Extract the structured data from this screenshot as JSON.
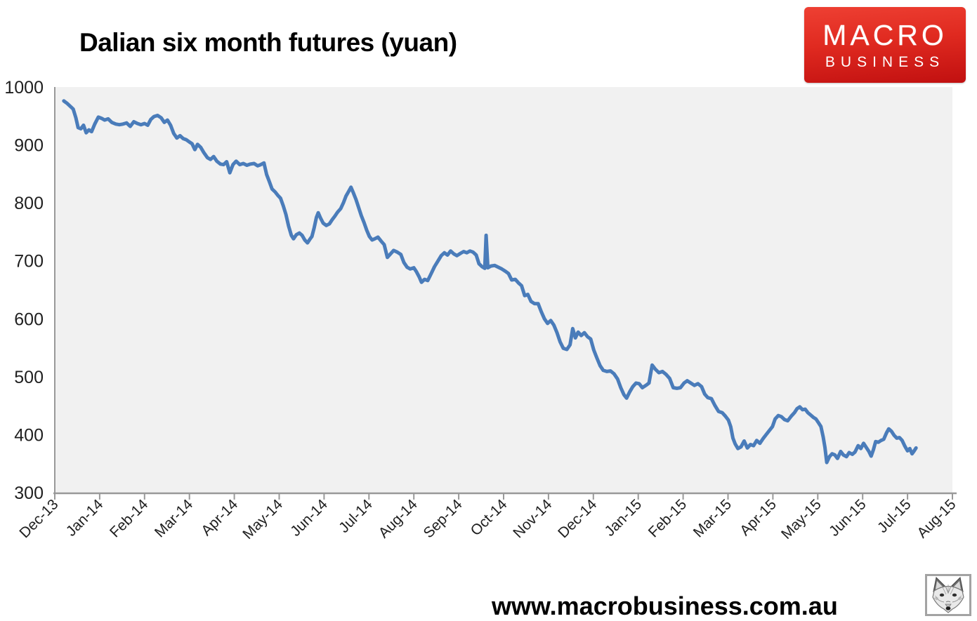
{
  "header": {
    "title": "Dalian six month futures (yuan)"
  },
  "logo": {
    "line1": "MACRO",
    "line2": "BUSINESS",
    "bg_color": "#d6150b",
    "text_color": "#ffffff"
  },
  "footer": {
    "url": "www.macrobusiness.com.au"
  },
  "icons": {
    "fox": "fox-sketch-image"
  },
  "chart_data": {
    "type": "line",
    "title": "Dalian six month futures (yuan)",
    "xlabel": "",
    "ylabel": "",
    "legend": "none",
    "grid": false,
    "plot_bg": "#f1f1f1",
    "line_color": "#4a7cba",
    "axis_color": "#999999",
    "label_color": "#1f1f1f",
    "ylim": [
      300,
      1000
    ],
    "y_ticks": [
      1000,
      900,
      800,
      700,
      600,
      500,
      400,
      300
    ],
    "xlim_months": [
      0,
      20
    ],
    "x_tick_labels": [
      "Dec-13",
      "Jan-14",
      "Feb-14",
      "Mar-14",
      "Apr-14",
      "May-14",
      "Jun-14",
      "Jul-14",
      "Aug-14",
      "Sep-14",
      "Oct-14",
      "Nov-14",
      "Dec-14",
      "Jan-15",
      "Feb-15",
      "Mar-15",
      "Apr-15",
      "May-15",
      "Jun-15",
      "Jul-15",
      "Aug-15"
    ],
    "series": [
      {
        "name": "Dalian six month futures (yuan)",
        "x_unit": "months after Dec-2013",
        "points": [
          [
            0.2,
            976
          ],
          [
            0.27,
            972
          ],
          [
            0.34,
            967
          ],
          [
            0.41,
            962
          ],
          [
            0.47,
            947
          ],
          [
            0.52,
            930
          ],
          [
            0.58,
            928
          ],
          [
            0.64,
            934
          ],
          [
            0.7,
            921
          ],
          [
            0.76,
            926
          ],
          [
            0.82,
            923
          ],
          [
            0.89,
            936
          ],
          [
            0.97,
            948
          ],
          [
            1.04,
            946
          ],
          [
            1.11,
            943
          ],
          [
            1.19,
            945
          ],
          [
            1.27,
            939
          ],
          [
            1.36,
            936
          ],
          [
            1.44,
            935
          ],
          [
            1.52,
            936
          ],
          [
            1.6,
            938
          ],
          [
            1.68,
            932
          ],
          [
            1.76,
            940
          ],
          [
            1.84,
            937
          ],
          [
            1.92,
            935
          ],
          [
            2.0,
            937
          ],
          [
            2.07,
            934
          ],
          [
            2.14,
            944
          ],
          [
            2.21,
            949
          ],
          [
            2.29,
            951
          ],
          [
            2.37,
            947
          ],
          [
            2.44,
            939
          ],
          [
            2.51,
            943
          ],
          [
            2.58,
            934
          ],
          [
            2.65,
            920
          ],
          [
            2.72,
            912
          ],
          [
            2.79,
            916
          ],
          [
            2.86,
            911
          ],
          [
            2.93,
            909
          ],
          [
            3.0,
            905
          ],
          [
            3.06,
            902
          ],
          [
            3.12,
            892
          ],
          [
            3.18,
            901
          ],
          [
            3.25,
            896
          ],
          [
            3.32,
            887
          ],
          [
            3.4,
            878
          ],
          [
            3.47,
            875
          ],
          [
            3.54,
            880
          ],
          [
            3.61,
            872
          ],
          [
            3.69,
            867
          ],
          [
            3.76,
            866
          ],
          [
            3.83,
            871
          ],
          [
            3.9,
            852
          ],
          [
            3.97,
            866
          ],
          [
            4.04,
            872
          ],
          [
            4.12,
            866
          ],
          [
            4.2,
            868
          ],
          [
            4.28,
            865
          ],
          [
            4.36,
            867
          ],
          [
            4.44,
            868
          ],
          [
            4.52,
            864
          ],
          [
            4.59,
            866
          ],
          [
            4.66,
            869
          ],
          [
            4.72,
            849
          ],
          [
            4.78,
            837
          ],
          [
            4.84,
            824
          ],
          [
            4.91,
            819
          ],
          [
            4.97,
            813
          ],
          [
            5.03,
            808
          ],
          [
            5.09,
            795
          ],
          [
            5.15,
            780
          ],
          [
            5.21,
            760
          ],
          [
            5.27,
            744
          ],
          [
            5.32,
            738
          ],
          [
            5.38,
            745
          ],
          [
            5.45,
            748
          ],
          [
            5.51,
            744
          ],
          [
            5.57,
            736
          ],
          [
            5.63,
            731
          ],
          [
            5.68,
            737
          ],
          [
            5.73,
            742
          ],
          [
            5.78,
            757
          ],
          [
            5.83,
            775
          ],
          [
            5.87,
            783
          ],
          [
            5.92,
            774
          ],
          [
            5.98,
            765
          ],
          [
            6.05,
            761
          ],
          [
            6.12,
            764
          ],
          [
            6.18,
            771
          ],
          [
            6.24,
            777
          ],
          [
            6.3,
            784
          ],
          [
            6.37,
            790
          ],
          [
            6.43,
            800
          ],
          [
            6.49,
            812
          ],
          [
            6.55,
            820
          ],
          [
            6.6,
            827
          ],
          [
            6.65,
            818
          ],
          [
            6.71,
            806
          ],
          [
            6.77,
            792
          ],
          [
            6.83,
            778
          ],
          [
            6.89,
            766
          ],
          [
            6.95,
            753
          ],
          [
            7.01,
            742
          ],
          [
            7.07,
            736
          ],
          [
            7.13,
            738
          ],
          [
            7.2,
            741
          ],
          [
            7.27,
            734
          ],
          [
            7.34,
            728
          ],
          [
            7.41,
            706
          ],
          [
            7.48,
            712
          ],
          [
            7.55,
            718
          ],
          [
            7.63,
            715
          ],
          [
            7.71,
            711
          ],
          [
            7.78,
            697
          ],
          [
            7.85,
            689
          ],
          [
            7.92,
            686
          ],
          [
            8.0,
            688
          ],
          [
            8.06,
            681
          ],
          [
            8.12,
            672
          ],
          [
            8.17,
            663
          ],
          [
            8.24,
            668
          ],
          [
            8.31,
            666
          ],
          [
            8.38,
            677
          ],
          [
            8.46,
            690
          ],
          [
            8.54,
            700
          ],
          [
            8.61,
            709
          ],
          [
            8.68,
            714
          ],
          [
            8.75,
            710
          ],
          [
            8.82,
            717
          ],
          [
            8.89,
            712
          ],
          [
            8.96,
            709
          ],
          [
            9.04,
            713
          ],
          [
            9.11,
            716
          ],
          [
            9.18,
            714
          ],
          [
            9.25,
            717
          ],
          [
            9.32,
            715
          ],
          [
            9.39,
            710
          ],
          [
            9.45,
            695
          ],
          [
            9.52,
            690
          ],
          [
            9.58,
            687
          ],
          [
            9.61,
            744
          ],
          [
            9.65,
            688
          ],
          [
            9.72,
            691
          ],
          [
            9.8,
            692
          ],
          [
            9.88,
            689
          ],
          [
            9.96,
            686
          ],
          [
            10.04,
            682
          ],
          [
            10.11,
            678
          ],
          [
            10.18,
            667
          ],
          [
            10.26,
            668
          ],
          [
            10.33,
            662
          ],
          [
            10.4,
            657
          ],
          [
            10.47,
            640
          ],
          [
            10.54,
            642
          ],
          [
            10.61,
            630
          ],
          [
            10.69,
            626
          ],
          [
            10.77,
            626
          ],
          [
            10.84,
            612
          ],
          [
            10.91,
            600
          ],
          [
            10.98,
            592
          ],
          [
            11.05,
            597
          ],
          [
            11.12,
            589
          ],
          [
            11.19,
            576
          ],
          [
            11.26,
            560
          ],
          [
            11.33,
            549
          ],
          [
            11.41,
            547
          ],
          [
            11.48,
            555
          ],
          [
            11.54,
            583
          ],
          [
            11.6,
            567
          ],
          [
            11.66,
            577
          ],
          [
            11.73,
            571
          ],
          [
            11.8,
            576
          ],
          [
            11.87,
            569
          ],
          [
            11.94,
            565
          ],
          [
            12.01,
            546
          ],
          [
            12.08,
            532
          ],
          [
            12.15,
            519
          ],
          [
            12.22,
            511
          ],
          [
            12.3,
            509
          ],
          [
            12.38,
            510
          ],
          [
            12.46,
            505
          ],
          [
            12.54,
            496
          ],
          [
            12.61,
            481
          ],
          [
            12.68,
            469
          ],
          [
            12.74,
            463
          ],
          [
            12.81,
            474
          ],
          [
            12.88,
            483
          ],
          [
            12.95,
            489
          ],
          [
            13.02,
            488
          ],
          [
            13.09,
            481
          ],
          [
            13.17,
            485
          ],
          [
            13.24,
            489
          ],
          [
            13.31,
            520
          ],
          [
            13.38,
            513
          ],
          [
            13.46,
            507
          ],
          [
            13.54,
            509
          ],
          [
            13.62,
            504
          ],
          [
            13.7,
            497
          ],
          [
            13.78,
            481
          ],
          [
            13.86,
            480
          ],
          [
            13.94,
            481
          ],
          [
            14.02,
            489
          ],
          [
            14.09,
            493
          ],
          [
            14.17,
            489
          ],
          [
            14.25,
            485
          ],
          [
            14.33,
            488
          ],
          [
            14.41,
            483
          ],
          [
            14.48,
            470
          ],
          [
            14.55,
            464
          ],
          [
            14.63,
            462
          ],
          [
            14.71,
            450
          ],
          [
            14.79,
            440
          ],
          [
            14.87,
            438
          ],
          [
            14.94,
            432
          ],
          [
            15.01,
            425
          ],
          [
            15.06,
            414
          ],
          [
            15.11,
            394
          ],
          [
            15.16,
            384
          ],
          [
            15.22,
            376
          ],
          [
            15.29,
            379
          ],
          [
            15.36,
            389
          ],
          [
            15.43,
            377
          ],
          [
            15.5,
            383
          ],
          [
            15.57,
            381
          ],
          [
            15.64,
            390
          ],
          [
            15.71,
            385
          ],
          [
            15.78,
            393
          ],
          [
            15.85,
            400
          ],
          [
            15.92,
            407
          ],
          [
            15.99,
            414
          ],
          [
            16.05,
            427
          ],
          [
            16.12,
            433
          ],
          [
            16.19,
            431
          ],
          [
            16.26,
            426
          ],
          [
            16.33,
            424
          ],
          [
            16.41,
            432
          ],
          [
            16.48,
            438
          ],
          [
            16.54,
            445
          ],
          [
            16.6,
            448
          ],
          [
            16.66,
            443
          ],
          [
            16.72,
            444
          ],
          [
            16.78,
            438
          ],
          [
            16.84,
            434
          ],
          [
            16.9,
            430
          ],
          [
            16.96,
            427
          ],
          [
            17.02,
            420
          ],
          [
            17.07,
            414
          ],
          [
            17.12,
            396
          ],
          [
            17.16,
            378
          ],
          [
            17.2,
            352
          ],
          [
            17.26,
            362
          ],
          [
            17.32,
            367
          ],
          [
            17.38,
            365
          ],
          [
            17.44,
            359
          ],
          [
            17.51,
            371
          ],
          [
            17.57,
            365
          ],
          [
            17.64,
            362
          ],
          [
            17.7,
            369
          ],
          [
            17.77,
            366
          ],
          [
            17.83,
            370
          ],
          [
            17.9,
            381
          ],
          [
            17.96,
            376
          ],
          [
            18.02,
            385
          ],
          [
            18.08,
            378
          ],
          [
            18.14,
            371
          ],
          [
            18.19,
            363
          ],
          [
            18.24,
            374
          ],
          [
            18.29,
            388
          ],
          [
            18.35,
            387
          ],
          [
            18.41,
            390
          ],
          [
            18.47,
            392
          ],
          [
            18.53,
            403
          ],
          [
            18.58,
            410
          ],
          [
            18.64,
            406
          ],
          [
            18.7,
            399
          ],
          [
            18.76,
            394
          ],
          [
            18.82,
            395
          ],
          [
            18.88,
            390
          ],
          [
            18.94,
            380
          ],
          [
            19.0,
            372
          ],
          [
            19.05,
            376
          ],
          [
            19.1,
            367
          ],
          [
            19.14,
            371
          ],
          [
            19.19,
            377
          ]
        ]
      }
    ]
  }
}
